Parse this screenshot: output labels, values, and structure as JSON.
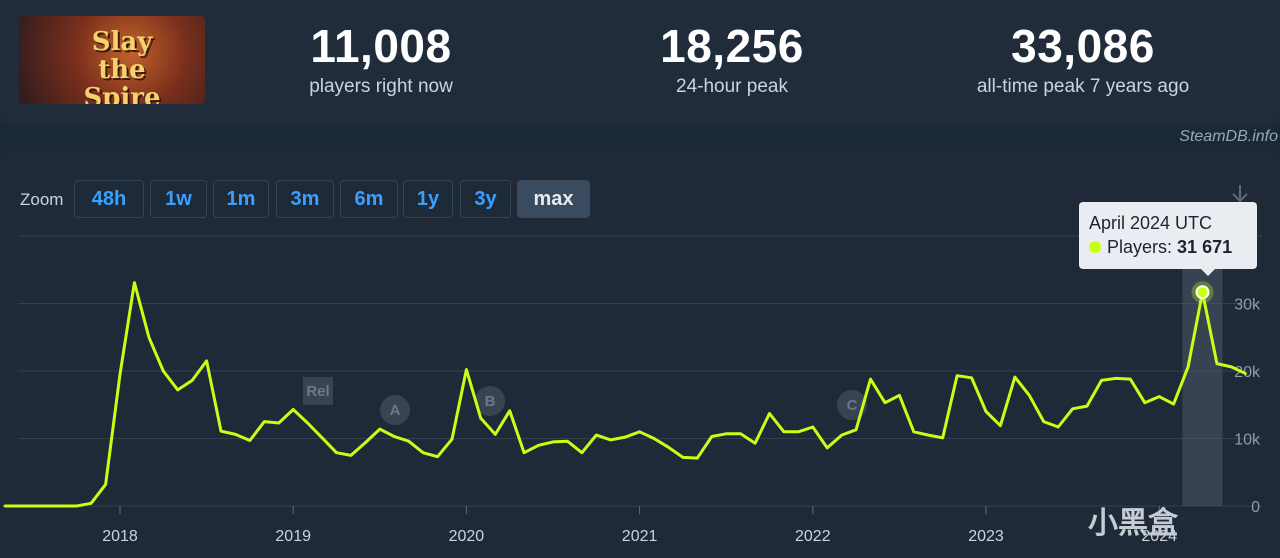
{
  "header": {
    "game_title_logo": "Slay the Spire",
    "stats": [
      {
        "value": "11,008",
        "label": "players right now"
      },
      {
        "value": "18,256",
        "label": "24-hour peak"
      },
      {
        "value": "33,086",
        "label": "all-time peak 7 years ago"
      }
    ],
    "brand": "SteamDB.info"
  },
  "zoom": {
    "label": "Zoom",
    "options": [
      "48h",
      "1w",
      "1m",
      "3m",
      "6m",
      "1y",
      "3y",
      "max"
    ],
    "active": "max"
  },
  "tooltip": {
    "title": "April 2024 UTC",
    "series_label": "Players:",
    "value": "31 671"
  },
  "watermark": "小黑盒",
  "colors": {
    "line": "#c8ff14",
    "background": "#1b2838",
    "panel": "#1f2937",
    "grid": "#34404f"
  },
  "chart_data": {
    "type": "line",
    "title": "",
    "xlabel": "",
    "ylabel": "",
    "x_ticks": [
      "2018",
      "2019",
      "2020",
      "2021",
      "2022",
      "2023",
      "2024"
    ],
    "y_ticks": [
      "0",
      "10k",
      "20k",
      "30k"
    ],
    "ylim": [
      0,
      40000
    ],
    "annotations": [
      "Rel",
      "A",
      "B",
      "C"
    ],
    "series": [
      {
        "values": [
          {
            "x": "2017-05",
            "y": 0
          },
          {
            "x": "2017-06",
            "y": 0
          },
          {
            "x": "2017-07",
            "y": 0
          },
          {
            "x": "2017-08",
            "y": 0
          },
          {
            "x": "2017-09",
            "y": 0
          },
          {
            "x": "2017-10",
            "y": 0
          },
          {
            "x": "2017-11",
            "y": 400
          },
          {
            "x": "2017-12",
            "y": 3200
          },
          {
            "x": "2018-01",
            "y": 19500
          },
          {
            "x": "2018-02",
            "y": 33100
          },
          {
            "x": "2018-03",
            "y": 25000
          },
          {
            "x": "2018-04",
            "y": 20000
          },
          {
            "x": "2018-05",
            "y": 17200
          },
          {
            "x": "2018-06",
            "y": 18600
          },
          {
            "x": "2018-07",
            "y": 21500
          },
          {
            "x": "2018-08",
            "y": 11100
          },
          {
            "x": "2018-09",
            "y": 10600
          },
          {
            "x": "2018-10",
            "y": 9700
          },
          {
            "x": "2018-11",
            "y": 12500
          },
          {
            "x": "2018-12",
            "y": 12300
          },
          {
            "x": "2019-01",
            "y": 14300
          },
          {
            "x": "2019-02",
            "y": 12300
          },
          {
            "x": "2019-03",
            "y": 10100
          },
          {
            "x": "2019-04",
            "y": 7900
          },
          {
            "x": "2019-05",
            "y": 7500
          },
          {
            "x": "2019-06",
            "y": 9400
          },
          {
            "x": "2019-07",
            "y": 11400
          },
          {
            "x": "2019-08",
            "y": 10300
          },
          {
            "x": "2019-09",
            "y": 9600
          },
          {
            "x": "2019-10",
            "y": 7900
          },
          {
            "x": "2019-11",
            "y": 7300
          },
          {
            "x": "2019-12",
            "y": 9900
          },
          {
            "x": "2020-01",
            "y": 20200
          },
          {
            "x": "2020-02",
            "y": 13000
          },
          {
            "x": "2020-03",
            "y": 10600
          },
          {
            "x": "2020-04",
            "y": 14100
          },
          {
            "x": "2020-05",
            "y": 7900
          },
          {
            "x": "2020-06",
            "y": 9000
          },
          {
            "x": "2020-07",
            "y": 9500
          },
          {
            "x": "2020-08",
            "y": 9600
          },
          {
            "x": "2020-09",
            "y": 7900
          },
          {
            "x": "2020-10",
            "y": 10500
          },
          {
            "x": "2020-11",
            "y": 9800
          },
          {
            "x": "2020-12",
            "y": 10200
          },
          {
            "x": "2021-01",
            "y": 11000
          },
          {
            "x": "2021-02",
            "y": 10000
          },
          {
            "x": "2021-03",
            "y": 8700
          },
          {
            "x": "2021-04",
            "y": 7200
          },
          {
            "x": "2021-05",
            "y": 7100
          },
          {
            "x": "2021-06",
            "y": 10300
          },
          {
            "x": "2021-07",
            "y": 10700
          },
          {
            "x": "2021-08",
            "y": 10700
          },
          {
            "x": "2021-09",
            "y": 9300
          },
          {
            "x": "2021-10",
            "y": 13700
          },
          {
            "x": "2021-11",
            "y": 11000
          },
          {
            "x": "2021-12",
            "y": 11000
          },
          {
            "x": "2022-01",
            "y": 11700
          },
          {
            "x": "2022-02",
            "y": 8600
          },
          {
            "x": "2022-03",
            "y": 10500
          },
          {
            "x": "2022-04",
            "y": 11300
          },
          {
            "x": "2022-05",
            "y": 18800
          },
          {
            "x": "2022-06",
            "y": 15300
          },
          {
            "x": "2022-07",
            "y": 16400
          },
          {
            "x": "2022-08",
            "y": 11000
          },
          {
            "x": "2022-09",
            "y": 10500
          },
          {
            "x": "2022-10",
            "y": 10100
          },
          {
            "x": "2022-11",
            "y": 19300
          },
          {
            "x": "2022-12",
            "y": 19000
          },
          {
            "x": "2023-01",
            "y": 14000
          },
          {
            "x": "2023-02",
            "y": 11900
          },
          {
            "x": "2023-03",
            "y": 19100
          },
          {
            "x": "2023-04",
            "y": 16400
          },
          {
            "x": "2023-05",
            "y": 12500
          },
          {
            "x": "2023-06",
            "y": 11700
          },
          {
            "x": "2023-07",
            "y": 14400
          },
          {
            "x": "2023-08",
            "y": 14800
          },
          {
            "x": "2023-09",
            "y": 18600
          },
          {
            "x": "2023-10",
            "y": 18900
          },
          {
            "x": "2023-11",
            "y": 18800
          },
          {
            "x": "2023-12",
            "y": 15300
          },
          {
            "x": "2024-01",
            "y": 16200
          },
          {
            "x": "2024-02",
            "y": 15100
          },
          {
            "x": "2024-03",
            "y": 20600
          },
          {
            "x": "2024-04",
            "y": 31671
          },
          {
            "x": "2024-05",
            "y": 21100
          },
          {
            "x": "2024-06",
            "y": 20600
          },
          {
            "x": "2024-07",
            "y": 19600
          }
        ]
      }
    ]
  }
}
